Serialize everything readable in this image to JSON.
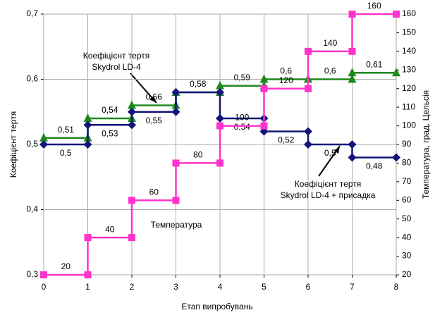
{
  "chart_data": {
    "type": "step",
    "x": [
      0,
      1,
      2,
      3,
      4,
      5,
      6,
      7
    ],
    "xlim": [
      0,
      8
    ],
    "xticks": [
      0,
      1,
      2,
      3,
      4,
      5,
      6,
      7,
      8
    ],
    "ylim": [
      0.3,
      0.7
    ],
    "yticks": [
      {
        "value": 0.3,
        "label": "0,3"
      },
      {
        "value": 0.4,
        "label": "0,4"
      },
      {
        "value": 0.5,
        "label": "0,5"
      },
      {
        "value": 0.6,
        "label": "0,6"
      },
      {
        "value": 0.7,
        "label": "0,7"
      }
    ],
    "y2lim": [
      20,
      160
    ],
    "y2ticks": [
      20,
      30,
      40,
      50,
      60,
      70,
      80,
      90,
      100,
      110,
      120,
      130,
      140,
      150,
      160
    ],
    "grid": true,
    "xlabel": "Етап випробувань",
    "ylabel": "Коефіцієнт тертя",
    "y2label": "Температура, град. Цельсія",
    "series": [
      {
        "color": "#1e8a1e",
        "marker": "triangle",
        "values": [
          0.51,
          0.54,
          0.56,
          0.58,
          0.59,
          0.6,
          0.6,
          0.61
        ],
        "value_labels": [
          "0,51",
          "0,54",
          "0,56",
          "0,58",
          "0,59",
          "0,6",
          "0,6",
          "0,61"
        ],
        "label_side": "above"
      },
      {
        "color": "#14147a",
        "marker": "diamond",
        "values": [
          0.5,
          0.53,
          0.55,
          0.58,
          0.54,
          0.52,
          0.5,
          0.48
        ],
        "value_labels": [
          "0,5",
          "0,53",
          "0,55",
          null,
          "0,54",
          "0,52",
          "0,5",
          "0,48"
        ],
        "label_side": "below"
      },
      {
        "color": "#ff33cc",
        "marker": "square",
        "axis": "y2",
        "values": [
          20,
          40,
          60,
          80,
          100,
          120,
          140,
          160
        ],
        "label_side": "above"
      }
    ],
    "annotations": [
      {
        "text": [
          "Коефіцієнт тертя",
          "Skydrol LD-4"
        ]
      },
      {
        "text": [
          "Температура"
        ]
      },
      {
        "text": [
          "Коефіцієнт тертя",
          "Skydrol LD-4 + присадка"
        ]
      }
    ]
  }
}
